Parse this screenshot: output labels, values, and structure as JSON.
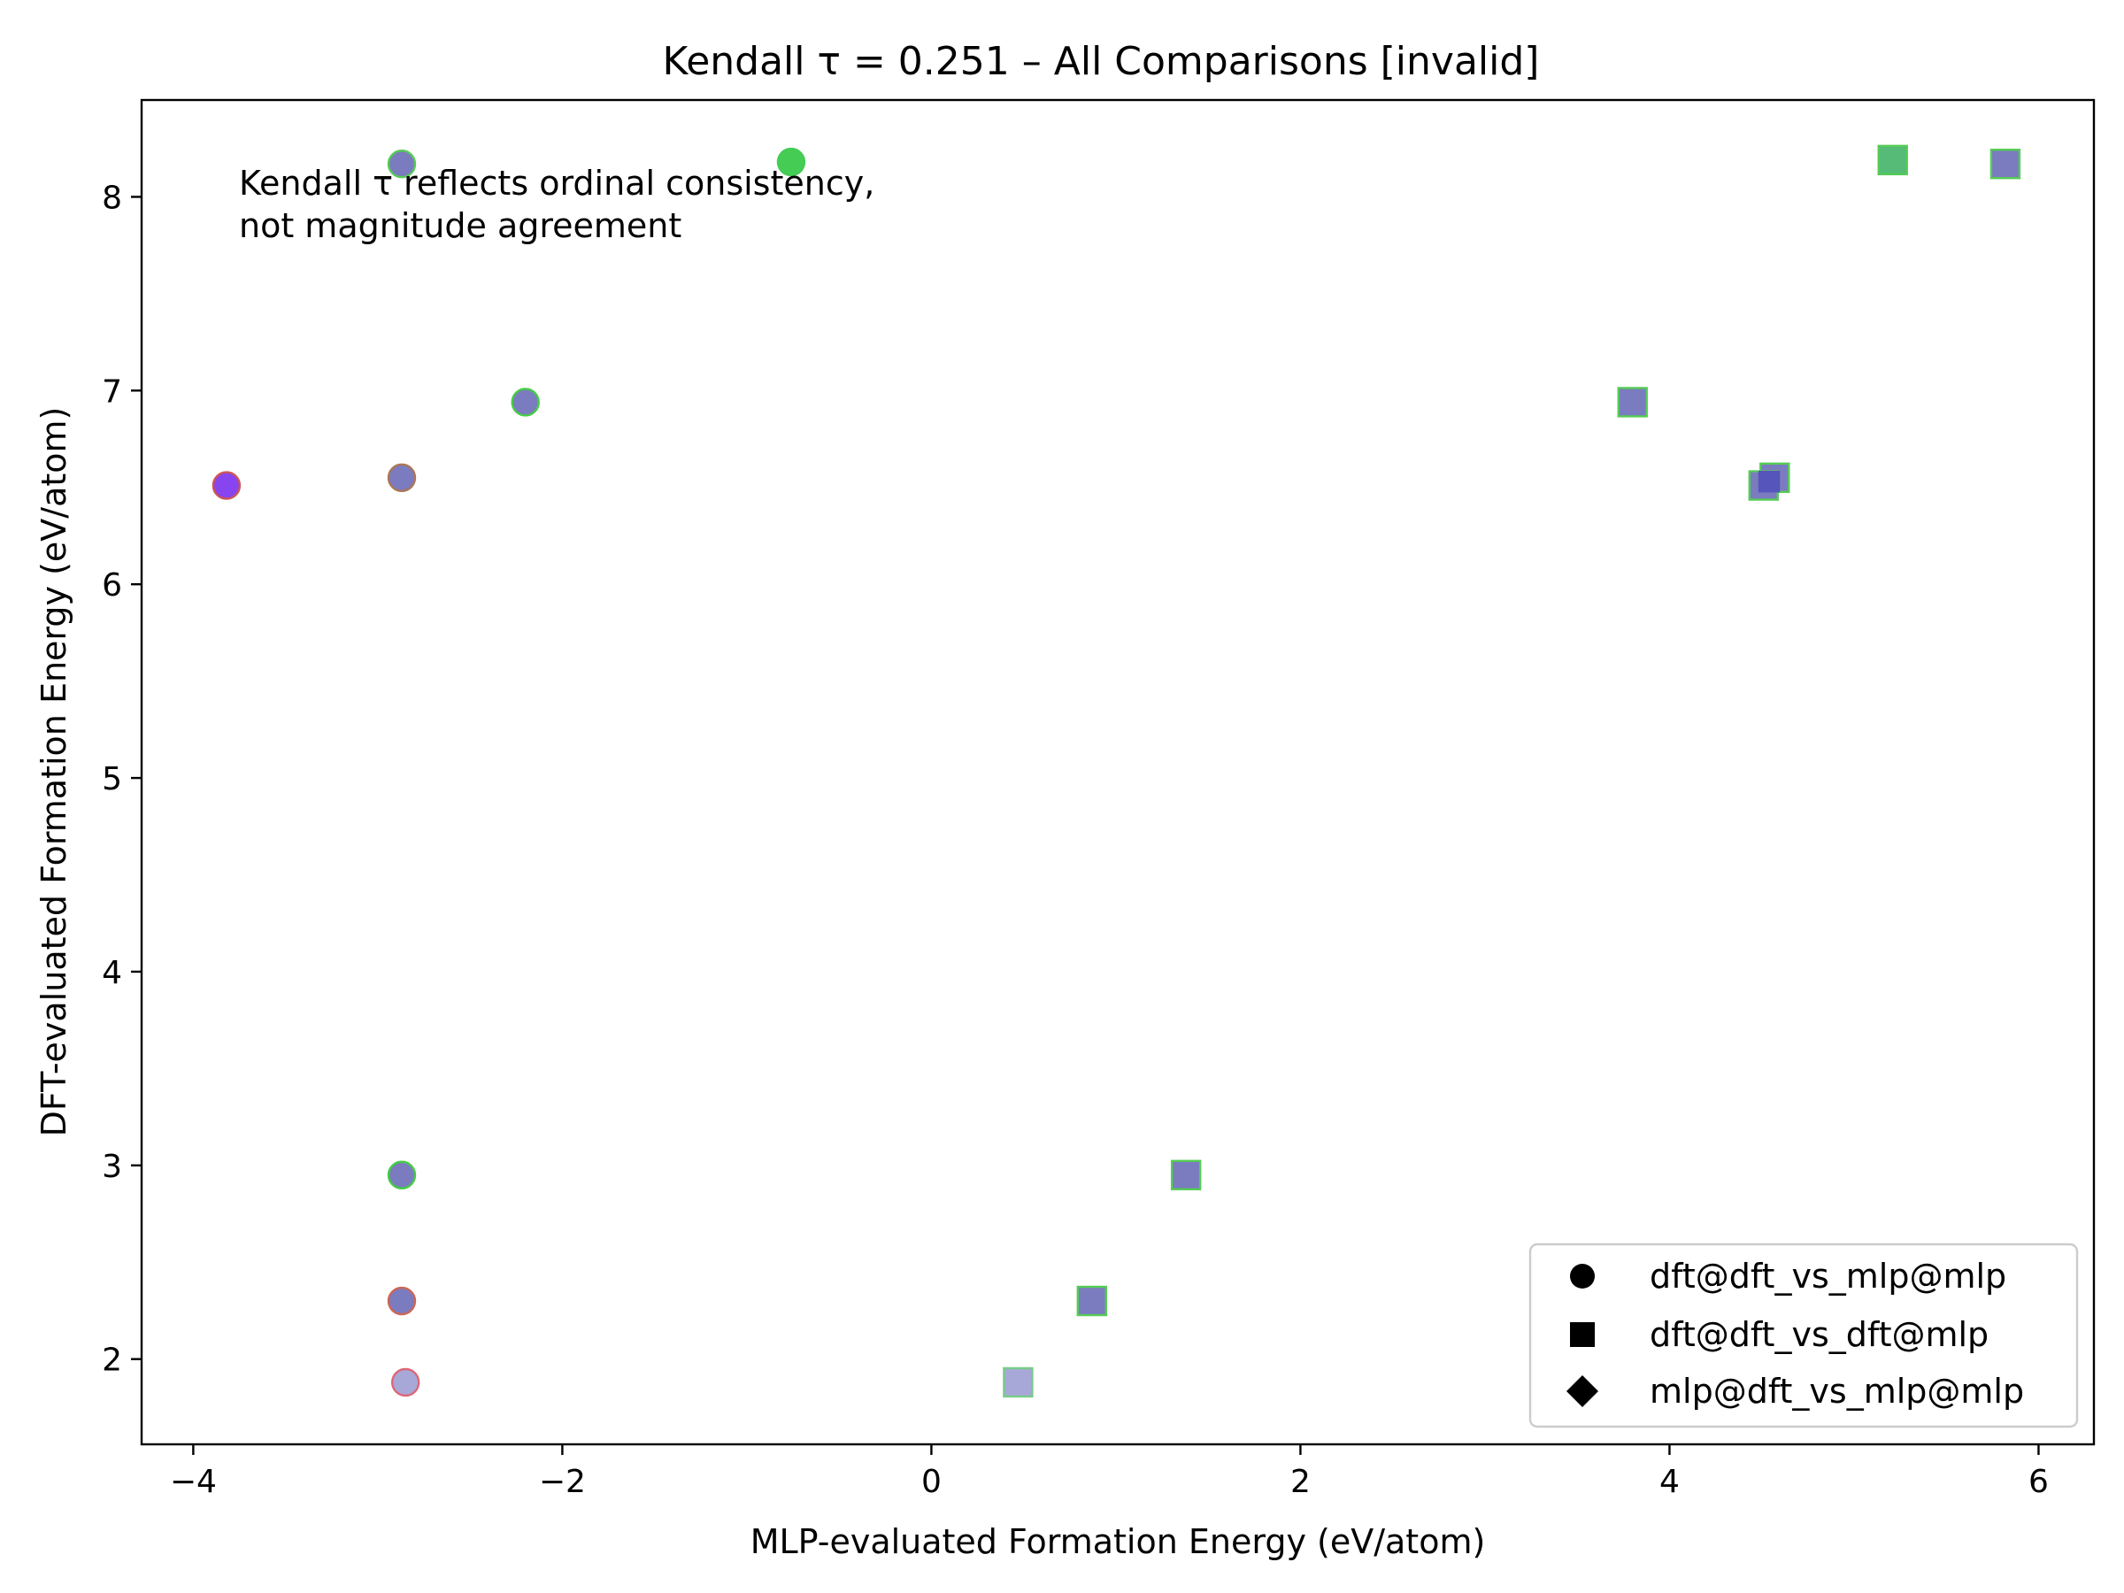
{
  "chart_data": {
    "type": "scatter",
    "title": "Kendall τ = 0.251 – All Comparisons [invalid]",
    "xlabel": "MLP-evaluated Formation Energy (eV/atom)",
    "ylabel": "DFT-evaluated Formation Energy (eV/atom)",
    "xlim": [
      -4.28,
      6.3
    ],
    "ylim": [
      1.56,
      8.5
    ],
    "xticks": [
      -4,
      -2,
      0,
      2,
      4,
      6
    ],
    "xtick_labels": [
      "−4",
      "−2",
      "0",
      "2",
      "4",
      "6"
    ],
    "yticks": [
      2,
      3,
      4,
      5,
      6,
      7,
      8
    ],
    "ytick_labels": [
      "2",
      "3",
      "4",
      "5",
      "6",
      "7",
      "8"
    ],
    "grid": false,
    "legend_position": "bottom-right",
    "annotation": [
      "Kendall τ reflects ordinal consistency,",
      "not magnitude agreement"
    ],
    "series": [
      {
        "name": "dft@dft_vs_mlp@mlp",
        "marker": "circle",
        "points": [
          {
            "x": -2.87,
            "y": 8.17,
            "fill": "#7b7bc0",
            "edge": "#55cc55"
          },
          {
            "x": -0.76,
            "y": 8.18,
            "fill": "#44cc55",
            "edge": "#44cc55"
          },
          {
            "x": -2.2,
            "y": 6.94,
            "fill": "#7b7bc0",
            "edge": "#44cc44"
          },
          {
            "x": -3.82,
            "y": 6.51,
            "fill": "#8844ee",
            "edge": "#cc5555"
          },
          {
            "x": -2.87,
            "y": 6.55,
            "fill": "#7b7bc0",
            "edge": "#aa7755"
          },
          {
            "x": -2.87,
            "y": 2.95,
            "fill": "#7b7bc0",
            "edge": "#44cc44"
          },
          {
            "x": -2.87,
            "y": 2.3,
            "fill": "#7b7bc0",
            "edge": "#cc6655"
          },
          {
            "x": -2.85,
            "y": 1.88,
            "fill": "#a8a8d8",
            "edge": "#dd6677"
          }
        ]
      },
      {
        "name": "dft@dft_vs_dft@mlp",
        "marker": "square",
        "points": [
          {
            "x": 5.21,
            "y": 8.19,
            "fill": "#55bb77",
            "edge": "#55cc55"
          },
          {
            "x": 5.82,
            "y": 8.17,
            "fill": "#7b7bc0",
            "edge": "#55cc55"
          },
          {
            "x": 3.8,
            "y": 6.94,
            "fill": "#7b7bc0",
            "edge": "#55cc55"
          },
          {
            "x": 4.57,
            "y": 6.55,
            "fill": "#7b7bc0",
            "edge": "#55cc55"
          },
          {
            "x": 4.51,
            "y": 6.51,
            "fill": "#7b7bc0",
            "edge": "#55cc55"
          },
          {
            "x": 4.54,
            "y": 6.53,
            "fill": "#5555bb",
            "edge": "#5555bb",
            "small": true
          },
          {
            "x": 1.38,
            "y": 2.95,
            "fill": "#7b7bc0",
            "edge": "#55cc55"
          },
          {
            "x": 0.87,
            "y": 2.3,
            "fill": "#7b7bc0",
            "edge": "#55cc55"
          },
          {
            "x": 0.47,
            "y": 1.88,
            "fill": "#a8a8d8",
            "edge": "#77cc88"
          }
        ]
      },
      {
        "name": "mlp@dft_vs_mlp@mlp",
        "marker": "diamond",
        "points": []
      }
    ]
  }
}
